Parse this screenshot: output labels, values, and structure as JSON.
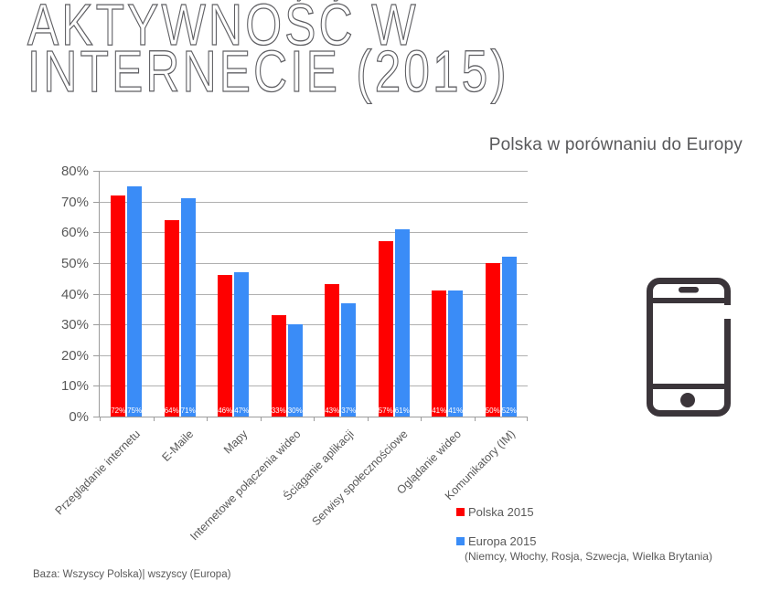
{
  "title": {
    "line1": "AKTYWNOŚĆ W",
    "line2": "INTERNECIE (2015)"
  },
  "subtitle": "Polska w porównaniu do Europy",
  "footer": "Baza: Wszyscy Polska)| wszyscy (Europa)",
  "colors": {
    "polska": "#fe0000",
    "europa": "#3a8cf7",
    "grid": "#b0b0b0",
    "axis": "#9b9b9b",
    "text": "#595959",
    "title": "#5f5f63",
    "value_label": "#ffffff",
    "phone_icon": "#3b353a"
  },
  "legend": {
    "items": [
      {
        "label": "Polska 2015",
        "note": ""
      },
      {
        "label": "Europa 2015",
        "note": "(Niemcy, Włochy, Rosja, Szwecja, Wielka Brytania)"
      }
    ],
    "position": "bottom-right"
  },
  "icons": [
    {
      "name": "smartphone-icon",
      "description": "outlined smartphone with speaker slot and home button"
    }
  ],
  "chart_data": {
    "type": "bar",
    "title": "Polska w porównaniu do Europy",
    "categories": [
      "Przeglądanie internetu",
      "E-Maile",
      "Mapy",
      "Internetowe połączenia wideo",
      "Ściąganie aplikacji",
      "Serwisy społecznościowe",
      "Oglądanie wideo",
      "Komunikatory (IM)"
    ],
    "series": [
      {
        "name": "Polska 2015",
        "color": "#fe0000",
        "values": [
          72,
          64,
          46,
          33,
          43,
          57,
          41,
          50
        ]
      },
      {
        "name": "Europa 2015",
        "color": "#3a8cf7",
        "values": [
          75,
          71,
          47,
          30,
          37,
          61,
          41,
          52
        ]
      }
    ],
    "xlabel": "",
    "ylabel": "",
    "ylim": [
      0,
      80
    ],
    "ytick": 10,
    "yticklabels": [
      "0%",
      "10%",
      "20%",
      "30%",
      "40%",
      "50%",
      "60%",
      "70%",
      "80%"
    ],
    "data_labels": "value% in white inside base of each bar",
    "grid": true,
    "legend_position": "bottom-right"
  }
}
